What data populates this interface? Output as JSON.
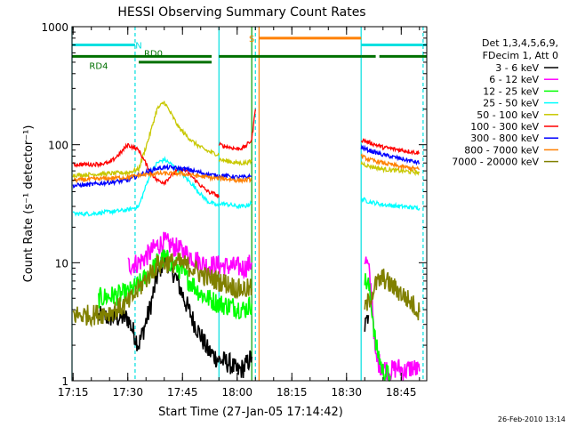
{
  "chart_data": {
    "type": "line",
    "title": "HESSI Observing Summary Count Rates",
    "xlabel": "Start Time (27-Jan-05 17:14:42)",
    "ylabel": "Count Rate (s⁻¹ detector⁻¹)",
    "y_scale": "log",
    "xlim": [
      "17:14:42",
      "18:52:00"
    ],
    "ylim": [
      1,
      1000
    ],
    "x_ticks": [
      "17:15",
      "17:30",
      "17:45",
      "18:00",
      "18:15",
      "18:30",
      "18:45"
    ],
    "y_ticks": [
      "1",
      "10",
      "100",
      "1000"
    ],
    "legend_header": [
      "Det 1,3,4,5,6,9,",
      "FDecim 1, Att 0"
    ],
    "legend_position": "right",
    "footer_timestamp": "26-Feb-2010 13:14",
    "annotations": [
      {
        "label": "N",
        "time": "17:33",
        "color": "#00e0e0"
      },
      {
        "label": "RD4",
        "time": "17:22",
        "color": "#007000"
      },
      {
        "label": "RD0",
        "time": "17:37",
        "color": "#007000"
      },
      {
        "label": "S",
        "time": "18:04",
        "color": "#ff8000"
      }
    ],
    "bars": [
      {
        "name": "night",
        "color": "#00e0e0",
        "y": 700,
        "ranges": [
          [
            "17:14:42",
            "17:32"
          ],
          [
            "18:34",
            "18:52"
          ]
        ]
      },
      {
        "name": "saa",
        "color": "#ff8000",
        "y": 800,
        "ranges": [
          [
            "18:06",
            "18:34"
          ]
        ]
      },
      {
        "name": "rd",
        "color": "#007000",
        "y": 560,
        "ranges": [
          [
            "17:14:42",
            "17:53"
          ],
          [
            "17:55",
            "18:34"
          ],
          [
            "18:34",
            "18:38"
          ],
          [
            "18:39",
            "18:52"
          ]
        ]
      },
      {
        "name": "rd4-bracket",
        "color": "#007000",
        "y": 500,
        "ranges": [
          [
            "17:33",
            "17:53"
          ]
        ]
      }
    ],
    "vlines": [
      {
        "time": "17:14:42",
        "color": "#00e0e0",
        "style": "solid"
      },
      {
        "time": "17:32",
        "color": "#00e0e0",
        "style": "dashed"
      },
      {
        "time": "17:55",
        "color": "#00e0e0",
        "style": "solid"
      },
      {
        "time": "18:05",
        "color": "#00e0e0",
        "style": "dashed"
      },
      {
        "time": "18:34",
        "color": "#00e0e0",
        "style": "solid"
      },
      {
        "time": "18:51",
        "color": "#00e0e0",
        "style": "dashed"
      },
      {
        "time": "18:04",
        "color": "#00a000",
        "style": "solid"
      },
      {
        "time": "18:06",
        "color": "#ff8000",
        "style": "solid"
      }
    ],
    "series": [
      {
        "name": "3 - 6 keV",
        "color": "#000000",
        "segments": [
          {
            "times": [
              "17:22",
              "17:30",
              "17:33",
              "17:36",
              "17:38",
              "17:40",
              "17:42",
              "17:44",
              "17:46",
              "17:48",
              "17:50",
              "17:52",
              "17:55",
              "17:58",
              "18:00",
              "18:02",
              "18:04"
            ],
            "values": [
              3.5,
              3.4,
              2.0,
              4.0,
              7.5,
              11,
              9.0,
              6.5,
              4.5,
              3.2,
              2.4,
              1.8,
              1.5,
              1.4,
              1.2,
              1.3,
              1.6
            ]
          },
          {
            "times": [
              "18:35",
              "18:36"
            ],
            "values": [
              2.8,
              3.6
            ]
          }
        ]
      },
      {
        "name": "6 - 12 keV",
        "color": "#ff00ff",
        "segments": [
          {
            "times": [
              "17:30",
              "17:33",
              "17:36",
              "17:38",
              "17:40",
              "17:42",
              "17:44",
              "17:46",
              "17:48",
              "17:50",
              "17:52",
              "17:55",
              "17:58",
              "18:00",
              "18:02",
              "18:04"
            ],
            "values": [
              9.5,
              10,
              12,
              14,
              15,
              14,
              13,
              12,
              11,
              10,
              9.5,
              9.5,
              9.3,
              9.2,
              9.0,
              10
            ]
          },
          {
            "times": [
              "18:35",
              "18:36",
              "18:37",
              "18:38",
              "18:40",
              "18:42",
              "18:44",
              "18:46",
              "18:48",
              "18:50"
            ],
            "values": [
              11,
              9.0,
              5.0,
              1.5,
              1.3,
              1.2,
              1.3,
              1.2,
              1.3,
              1.2
            ]
          }
        ]
      },
      {
        "name": "12 - 25 keV",
        "color": "#00ff00",
        "segments": [
          {
            "times": [
              "17:22",
              "17:30",
              "17:33",
              "17:36",
              "17:38",
              "17:40",
              "17:42",
              "17:44",
              "17:46",
              "17:48",
              "17:50",
              "17:52",
              "17:55",
              "17:58",
              "18:00",
              "18:02",
              "18:04"
            ],
            "values": [
              5.0,
              5.5,
              6.5,
              8.0,
              10,
              11,
              10,
              9.0,
              7.5,
              6.5,
              5.5,
              5.0,
              4.5,
              4.3,
              4.2,
              4.0,
              4.5
            ]
          },
          {
            "times": [
              "18:35",
              "18:36",
              "18:37",
              "18:38",
              "18:40",
              "18:42"
            ],
            "values": [
              7.0,
              6.5,
              4.0,
              2.0,
              1.2,
              1.1
            ]
          }
        ]
      },
      {
        "name": "25 - 50 keV",
        "color": "#00ffff",
        "segments": [
          {
            "times": [
              "17:15",
              "17:20",
              "17:25",
              "17:30",
              "17:33",
              "17:36",
              "17:38",
              "17:40",
              "17:42",
              "17:44",
              "17:46",
              "17:48",
              "17:50",
              "17:52",
              "17:54",
              "17:55"
            ],
            "values": [
              26,
              26,
              27,
              28,
              30,
              55,
              70,
              75,
              68,
              60,
              52,
              45,
              38,
              33,
              31,
              30
            ]
          },
          {
            "times": [
              "17:55",
              "17:58",
              "18:00",
              "18:02",
              "18:04"
            ],
            "values": [
              32,
              31,
              30,
              30,
              32
            ]
          },
          {
            "times": [
              "18:34",
              "18:36",
              "18:40",
              "18:45",
              "18:50"
            ],
            "values": [
              35,
              33,
              31,
              30,
              29
            ]
          }
        ]
      },
      {
        "name": "50 - 100 keV",
        "color": "#c8c800",
        "segments": [
          {
            "times": [
              "17:15",
              "17:20",
              "17:25",
              "17:30",
              "17:33",
              "17:36",
              "17:38",
              "17:40",
              "17:42",
              "17:44",
              "17:46",
              "17:48",
              "17:50",
              "17:52",
              "17:54",
              "17:55"
            ],
            "values": [
              55,
              56,
              57,
              58,
              62,
              120,
              200,
              230,
              180,
              140,
              120,
              105,
              95,
              88,
              84,
              82
            ]
          },
          {
            "times": [
              "17:55",
              "17:58",
              "18:00",
              "18:02",
              "18:04"
            ],
            "values": [
              75,
              72,
              70,
              70,
              72
            ]
          },
          {
            "times": [
              "18:34",
              "18:36",
              "18:40",
              "18:45",
              "18:50"
            ],
            "values": [
              70,
              66,
              62,
              60,
              58
            ]
          }
        ]
      },
      {
        "name": "100 - 300 keV",
        "color": "#ff0000",
        "segments": [
          {
            "times": [
              "17:15",
              "17:20",
              "17:25",
              "17:28",
              "17:30",
              "17:33",
              "17:36",
              "17:38",
              "17:40",
              "17:42",
              "17:44",
              "17:46",
              "17:48",
              "17:50",
              "17:52",
              "17:54",
              "17:55"
            ],
            "values": [
              68,
              68,
              70,
              85,
              100,
              90,
              60,
              50,
              48,
              55,
              62,
              60,
              52,
              45,
              40,
              38,
              36
            ]
          },
          {
            "times": [
              "17:55",
              "17:58",
              "18:00",
              "18:02",
              "18:04",
              "18:05"
            ],
            "values": [
              100,
              95,
              92,
              95,
              110,
              200
            ]
          },
          {
            "times": [
              "18:34",
              "18:36",
              "18:38",
              "18:40",
              "18:45",
              "18:50"
            ],
            "values": [
              110,
              105,
              100,
              95,
              90,
              85
            ]
          }
        ]
      },
      {
        "name": "300 - 800 keV",
        "color": "#0000ff",
        "segments": [
          {
            "times": [
              "17:15",
              "17:20",
              "17:25",
              "17:30",
              "17:33",
              "17:36",
              "17:38",
              "17:40",
              "17:42",
              "17:44",
              "17:46",
              "17:48",
              "17:50",
              "17:52",
              "17:54",
              "17:55"
            ],
            "values": [
              45,
              46,
              48,
              50,
              55,
              60,
              63,
              64,
              64,
              63,
              62,
              60,
              58,
              56,
              55,
              54
            ]
          },
          {
            "times": [
              "17:55",
              "17:58",
              "18:00",
              "18:02",
              "18:04"
            ],
            "values": [
              55,
              54,
              53,
              53,
              54
            ]
          },
          {
            "times": [
              "18:34",
              "18:36",
              "18:40",
              "18:45",
              "18:50"
            ],
            "values": [
              95,
              90,
              82,
              76,
              70
            ]
          }
        ]
      },
      {
        "name": "800 - 7000 keV",
        "color": "#ff8000",
        "segments": [
          {
            "times": [
              "17:15",
              "17:20",
              "17:25",
              "17:30",
              "17:33",
              "17:36",
              "17:38",
              "17:40",
              "17:42",
              "17:44",
              "17:46",
              "17:48",
              "17:50",
              "17:52",
              "17:54",
              "17:55"
            ],
            "values": [
              50,
              51,
              52,
              53,
              55,
              56,
              57,
              57,
              57,
              57,
              56,
              55,
              54,
              53,
              52,
              52
            ]
          },
          {
            "times": [
              "17:55",
              "17:58",
              "18:00",
              "18:02",
              "18:04"
            ],
            "values": [
              52,
              51,
              50,
              50,
              51
            ]
          },
          {
            "times": [
              "18:34",
              "18:36",
              "18:40",
              "18:45",
              "18:50"
            ],
            "values": [
              80,
              75,
              70,
              65,
              62
            ]
          }
        ]
      },
      {
        "name": "7000 - 20000 keV",
        "color": "#808000",
        "segments": [
          {
            "times": [
              "17:15",
              "17:20",
              "17:25",
              "17:30",
              "17:33",
              "17:36",
              "17:38",
              "17:40",
              "17:42",
              "17:44",
              "17:46",
              "17:48",
              "17:50",
              "17:52",
              "17:55",
              "17:58",
              "18:00",
              "18:02",
              "18:04"
            ],
            "values": [
              3.6,
              3.6,
              3.8,
              4.5,
              6.0,
              8.0,
              9.5,
              10,
              10,
              10,
              9.5,
              9.0,
              8.0,
              7.5,
              7.0,
              6.5,
              6.0,
              6.0,
              6.0
            ]
          },
          {
            "times": [
              "18:35",
              "18:38",
              "18:40",
              "18:42",
              "18:45",
              "18:48",
              "18:50"
            ],
            "values": [
              4.0,
              6.5,
              7.5,
              6.5,
              5.5,
              4.5,
              3.8
            ]
          }
        ]
      }
    ]
  }
}
